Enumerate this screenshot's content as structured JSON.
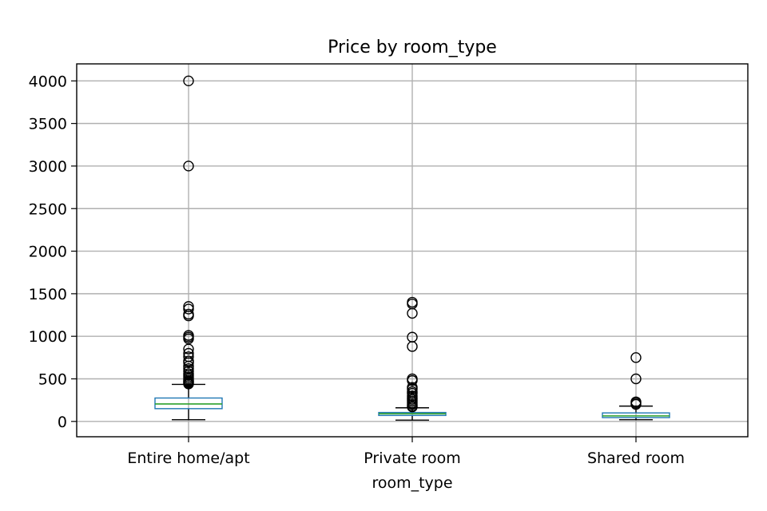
{
  "chart_data": {
    "type": "boxplot",
    "title": "Price by room_type",
    "xlabel": "room_type",
    "ylabel": "",
    "ylim": [
      -180,
      4200
    ],
    "yticks": [
      0,
      500,
      1000,
      1500,
      2000,
      2500,
      3000,
      3500,
      4000
    ],
    "grid": true,
    "legend": "none",
    "colors": {
      "box": "#1f77b4",
      "median": "#2ca02c",
      "whisker": "#000000",
      "flier": "#000000"
    },
    "categories": [
      "Entire home/apt",
      "Private room",
      "Shared room"
    ],
    "boxes": [
      {
        "category": "Entire home/apt",
        "whisker_low": 20,
        "q1": 150,
        "median": 205,
        "q3": 275,
        "whisker_high": 435,
        "fliers": [
          4000,
          3000,
          1350,
          1320,
          1260,
          1240,
          1010,
          990,
          970,
          850,
          800,
          760,
          710,
          690,
          650,
          620,
          590,
          560,
          540,
          520,
          500,
          480,
          470,
          460,
          450,
          440
        ]
      },
      {
        "category": "Private room",
        "whisker_low": 15,
        "q1": 70,
        "median": 90,
        "q3": 105,
        "whisker_high": 160,
        "fliers": [
          1400,
          1380,
          1270,
          990,
          880,
          500,
          480,
          400,
          380,
          350,
          330,
          300,
          280,
          260,
          240,
          220,
          200,
          180,
          170
        ]
      },
      {
        "category": "Shared room",
        "whisker_low": 20,
        "q1": 45,
        "median": 65,
        "q3": 100,
        "whisker_high": 180,
        "fliers": [
          750,
          500,
          230,
          215,
          200
        ]
      }
    ]
  }
}
